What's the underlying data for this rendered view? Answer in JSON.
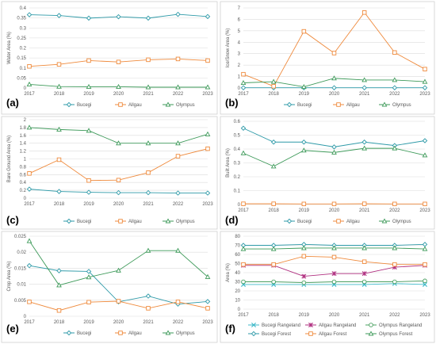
{
  "chart_data": [
    {
      "type": "line",
      "panel_label": "(a)",
      "ylabel": "Water Area (%)",
      "x": [
        2017,
        2018,
        2019,
        2020,
        2021,
        2022,
        2023
      ],
      "ylim": [
        0,
        0.4
      ],
      "yticks": [
        "0",
        "0.05",
        "0.1",
        "0.15",
        "0.2",
        "0.25",
        "0.3",
        "0.35",
        "0.4"
      ],
      "grid": true,
      "legend_position": "bottom",
      "series": [
        {
          "name": "Bucegi",
          "marker": "diamond",
          "color": "#2e9aa8",
          "values": [
            0.366,
            0.362,
            0.349,
            0.356,
            0.349,
            0.368,
            0.357
          ]
        },
        {
          "name": "Allgau",
          "marker": "square",
          "color": "#ef8a3c",
          "values": [
            0.108,
            0.118,
            0.137,
            0.13,
            0.141,
            0.145,
            0.137
          ]
        },
        {
          "name": "Olympus",
          "marker": "triangle",
          "color": "#3e9a5a",
          "values": [
            0.018,
            0.007,
            0.006,
            0.006,
            0.004,
            0.004,
            0.004
          ]
        }
      ]
    },
    {
      "type": "line",
      "panel_label": "(b)",
      "ylabel": "Ice/Snow Area (%)",
      "x": [
        2017,
        2018,
        2019,
        2020,
        2021,
        2022,
        2023
      ],
      "ylim": [
        0,
        7
      ],
      "yticks": [
        "0",
        "1",
        "2",
        "3",
        "4",
        "5",
        "6",
        "7"
      ],
      "grid": true,
      "legend_position": "bottom",
      "series": [
        {
          "name": "Bucegi",
          "marker": "diamond",
          "color": "#2e9aa8",
          "values": [
            0.02,
            0.02,
            0.02,
            0.02,
            0.02,
            0.02,
            0.02
          ]
        },
        {
          "name": "Allgau",
          "marker": "square",
          "color": "#ef8a3c",
          "values": [
            1.2,
            0.15,
            4.95,
            3.05,
            6.6,
            3.1,
            1.65
          ]
        },
        {
          "name": "Olympus",
          "marker": "triangle",
          "color": "#3e9a5a",
          "values": [
            0.45,
            0.55,
            0.1,
            0.85,
            0.7,
            0.7,
            0.55
          ]
        }
      ]
    },
    {
      "type": "line",
      "panel_label": "(c)",
      "ylabel": "Bare Ground Area (%)",
      "x": [
        2017,
        2018,
        2019,
        2020,
        2021,
        2022,
        2023
      ],
      "ylim": [
        0,
        2
      ],
      "yticks": [
        "0",
        "0.2",
        "0.4",
        "0.6",
        "0.8",
        "1",
        "1.2",
        "1.4",
        "1.6",
        "1.8",
        "2"
      ],
      "grid": true,
      "legend_position": "bottom",
      "series": [
        {
          "name": "Bucegi",
          "marker": "diamond",
          "color": "#2e9aa8",
          "values": [
            0.23,
            0.17,
            0.15,
            0.14,
            0.14,
            0.13,
            0.13
          ]
        },
        {
          "name": "Allgau",
          "marker": "square",
          "color": "#ef8a3c",
          "values": [
            0.63,
            0.98,
            0.45,
            0.46,
            0.65,
            1.07,
            1.26
          ]
        },
        {
          "name": "Olympus",
          "marker": "triangle",
          "color": "#3e9a5a",
          "values": [
            1.8,
            1.75,
            1.72,
            1.4,
            1.4,
            1.4,
            1.63
          ]
        }
      ]
    },
    {
      "type": "line",
      "panel_label": "(d)",
      "ylabel": "Built Area (%)",
      "x": [
        2017,
        2018,
        2019,
        2020,
        2021,
        2022,
        2023
      ],
      "ylim": [
        0,
        0.6
      ],
      "yticks": [
        "0",
        "0.1",
        "0.2",
        "0.3",
        "0.4",
        "0.5",
        "0.6"
      ],
      "grid": true,
      "legend_position": "bottom",
      "series": [
        {
          "name": "Bucegi",
          "marker": "diamond",
          "color": "#2e9aa8",
          "values": [
            0.55,
            0.45,
            0.45,
            0.415,
            0.45,
            0.425,
            0.46
          ]
        },
        {
          "name": "Allgau",
          "marker": "square",
          "color": "#ef8a3c",
          "values": [
            0.005,
            0.005,
            0.004,
            0.004,
            0.005,
            0.004,
            0.004
          ]
        },
        {
          "name": "Olympus",
          "marker": "triangle",
          "color": "#3e9a5a",
          "values": [
            0.37,
            0.275,
            0.39,
            0.375,
            0.405,
            0.405,
            0.355
          ]
        }
      ]
    },
    {
      "type": "line",
      "panel_label": "(e)",
      "ylabel": "Crop Area (%)",
      "x": [
        2017,
        2018,
        2019,
        2020,
        2021,
        2022,
        2023
      ],
      "ylim": [
        0,
        0.025
      ],
      "yticks": [
        "0",
        "0.005",
        "0.01",
        "0.015",
        "0.02",
        "0.025"
      ],
      "grid": true,
      "legend_position": "bottom",
      "series": [
        {
          "name": "Bucegi",
          "marker": "diamond",
          "color": "#2e9aa8",
          "values": [
            0.0158,
            0.0142,
            0.014,
            0.0045,
            0.0063,
            0.0038,
            0.0046
          ]
        },
        {
          "name": "Allgau",
          "marker": "square",
          "color": "#ef8a3c",
          "values": [
            0.0045,
            0.0018,
            0.0044,
            0.0047,
            0.0025,
            0.0045,
            0.0025
          ]
        },
        {
          "name": "Olympus",
          "marker": "triangle",
          "color": "#3e9a5a",
          "values": [
            0.0235,
            0.0097,
            0.0122,
            0.0143,
            0.0205,
            0.0205,
            0.0123
          ]
        }
      ]
    },
    {
      "type": "line",
      "panel_label": "(f)",
      "ylabel": "Area (%)",
      "x": [
        2017,
        2018,
        2019,
        2020,
        2021,
        2022,
        2023
      ],
      "ylim": [
        0,
        80
      ],
      "yticks": [
        "0",
        "10",
        "20",
        "30",
        "40",
        "50",
        "60",
        "70",
        "80"
      ],
      "grid": true,
      "legend_position": "bottom",
      "series": [
        {
          "name": "Bucegi Rangeland",
          "marker": "x",
          "color": "#3cb8c8",
          "values": [
            27,
            27,
            27,
            27,
            27,
            28,
            27
          ]
        },
        {
          "name": "Allgau Rangeland",
          "marker": "cross",
          "color": "#b03080",
          "values": [
            48,
            48,
            36,
            39,
            39,
            46,
            48
          ]
        },
        {
          "name": "Olympus Rangeland",
          "marker": "circle",
          "color": "#4aa060",
          "values": [
            30,
            30,
            29,
            30,
            30,
            30,
            31
          ]
        },
        {
          "name": "Bucegi Forest",
          "marker": "diamond",
          "color": "#2e9aa8",
          "values": [
            70,
            70,
            71,
            70,
            70,
            70,
            71
          ]
        },
        {
          "name": "Allgau Forest",
          "marker": "square",
          "color": "#ef8a3c",
          "values": [
            49,
            49,
            58,
            57,
            52,
            49,
            49
          ]
        },
        {
          "name": "Olympus Forest",
          "marker": "triangle",
          "color": "#3e9a5a",
          "values": [
            66,
            66,
            67,
            67,
            67,
            67,
            66
          ]
        }
      ]
    }
  ]
}
